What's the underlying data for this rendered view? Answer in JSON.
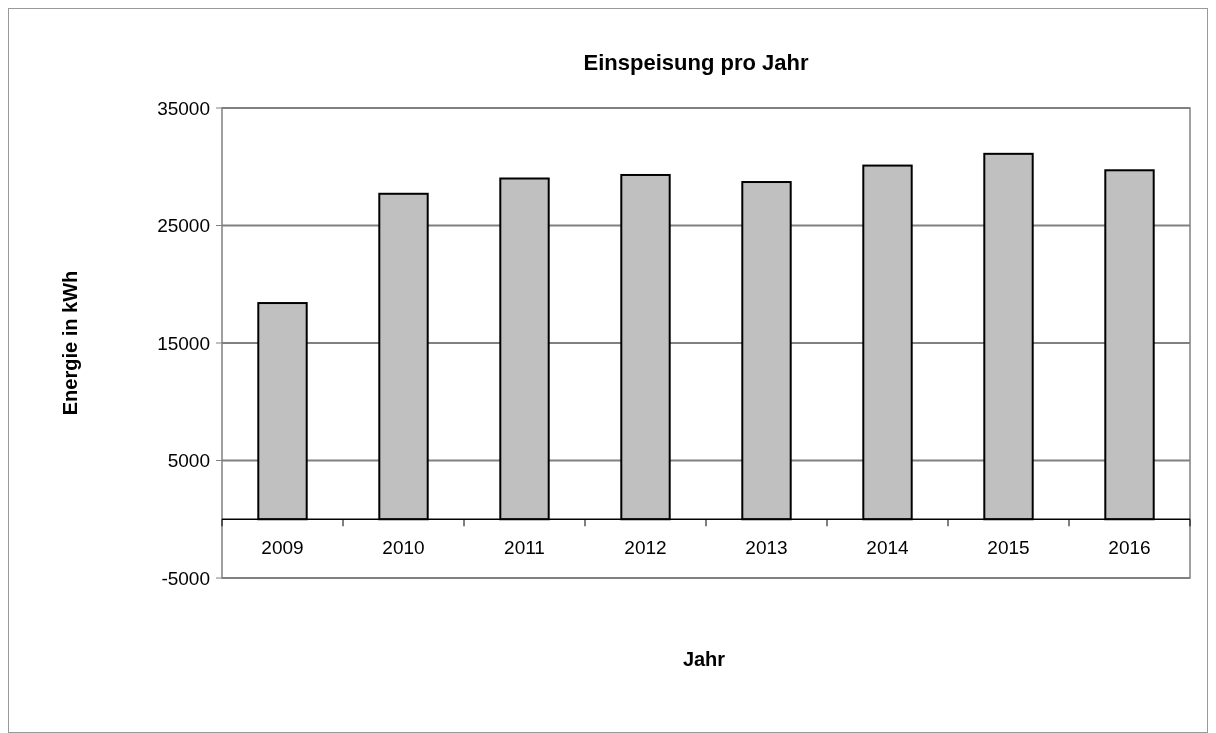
{
  "chart_data": {
    "type": "bar",
    "title": "Einspeisung pro Jahr",
    "xlabel": "Jahr",
    "ylabel": "Energie in kWh",
    "categories": [
      "2009",
      "2010",
      "2011",
      "2012",
      "2013",
      "2014",
      "2015",
      "2016"
    ],
    "values": [
      18400,
      27700,
      29000,
      29300,
      28700,
      30100,
      31100,
      29700
    ],
    "color": "#c0c0c0",
    "ylim": [
      -5000,
      35000
    ],
    "yticks": [
      -5000,
      5000,
      15000,
      25000,
      35000
    ],
    "grid": "y"
  }
}
